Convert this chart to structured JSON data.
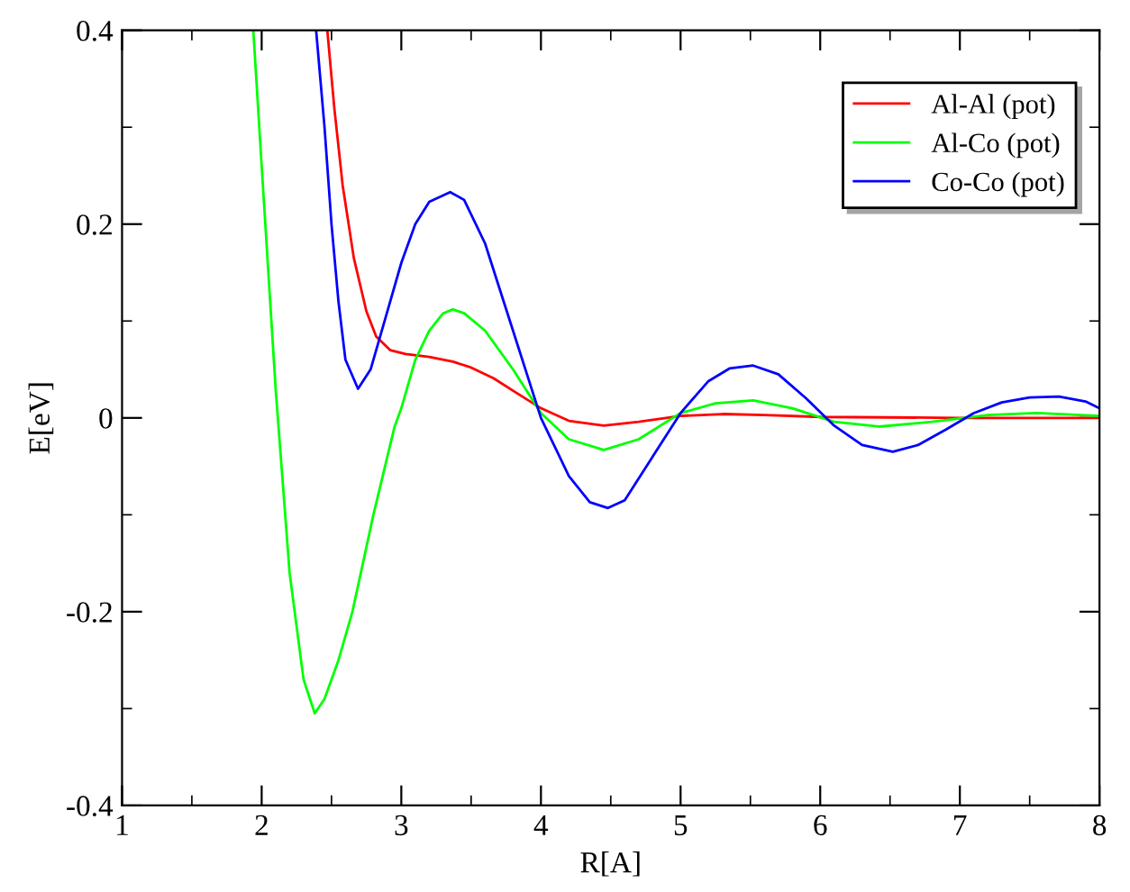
{
  "chart_data": {
    "type": "line",
    "xlabel": "R[A]",
    "ylabel": "E[eV]",
    "xlim": [
      1,
      8
    ],
    "ylim": [
      -0.4,
      0.4
    ],
    "xticks": [
      1,
      2,
      3,
      4,
      5,
      6,
      7,
      8
    ],
    "yticks": [
      -0.4,
      -0.2,
      0,
      0.2,
      0.4
    ],
    "grid": false,
    "legend": "top right",
    "marker": "none",
    "line_style": "solid",
    "series": [
      {
        "name": "Al-Al (pot)",
        "color": "#ff0000",
        "x": [
          2.47,
          2.52,
          2.58,
          2.66,
          2.75,
          2.82,
          2.92,
          3.03,
          3.2,
          3.37,
          3.5,
          3.66,
          3.8,
          4.0,
          4.2,
          4.45,
          4.7,
          5.0,
          5.3,
          5.6,
          6.0,
          7.0,
          8.0
        ],
        "values": [
          0.4,
          0.32,
          0.24,
          0.165,
          0.11,
          0.084,
          0.07,
          0.066,
          0.063,
          0.058,
          0.052,
          0.041,
          0.028,
          0.01,
          -0.003,
          -0.008,
          -0.004,
          0.002,
          0.004,
          0.003,
          0.001,
          0.0,
          0.0
        ]
      },
      {
        "name": "Al-Co (pot)",
        "color": "#00ff00",
        "x": [
          1.94,
          2.0,
          2.1,
          2.2,
          2.3,
          2.38,
          2.45,
          2.55,
          2.65,
          2.8,
          2.95,
          3.0,
          3.1,
          3.2,
          3.3,
          3.37,
          3.45,
          3.6,
          3.8,
          4.0,
          4.2,
          4.45,
          4.7,
          5.0,
          5.25,
          5.52,
          5.8,
          6.1,
          6.42,
          6.8,
          7.2,
          7.55,
          8.0
        ],
        "values": [
          0.4,
          0.26,
          0.03,
          -0.16,
          -0.27,
          -0.305,
          -0.29,
          -0.25,
          -0.2,
          -0.1,
          -0.01,
          0.01,
          0.06,
          0.09,
          0.108,
          0.112,
          0.108,
          0.09,
          0.05,
          0.005,
          -0.022,
          -0.033,
          -0.022,
          0.005,
          0.015,
          0.018,
          0.01,
          -0.004,
          -0.009,
          -0.004,
          0.003,
          0.005,
          0.002
        ]
      },
      {
        "name": "Co-Co (pot)",
        "color": "#0000ff",
        "x": [
          2.39,
          2.45,
          2.5,
          2.55,
          2.6,
          2.69,
          2.78,
          2.9,
          3.0,
          3.1,
          3.2,
          3.35,
          3.45,
          3.6,
          3.8,
          4.0,
          4.2,
          4.35,
          4.48,
          4.6,
          4.8,
          5.0,
          5.2,
          5.35,
          5.52,
          5.7,
          5.9,
          6.1,
          6.3,
          6.52,
          6.7,
          6.9,
          7.1,
          7.3,
          7.5,
          7.71,
          7.9,
          8.0
        ],
        "values": [
          0.4,
          0.3,
          0.2,
          0.12,
          0.06,
          0.03,
          0.05,
          0.11,
          0.16,
          0.2,
          0.223,
          0.233,
          0.225,
          0.18,
          0.09,
          0.0,
          -0.06,
          -0.087,
          -0.093,
          -0.085,
          -0.04,
          0.005,
          0.038,
          0.051,
          0.054,
          0.045,
          0.02,
          -0.008,
          -0.028,
          -0.035,
          -0.028,
          -0.012,
          0.005,
          0.016,
          0.021,
          0.022,
          0.017,
          0.01
        ]
      }
    ]
  }
}
